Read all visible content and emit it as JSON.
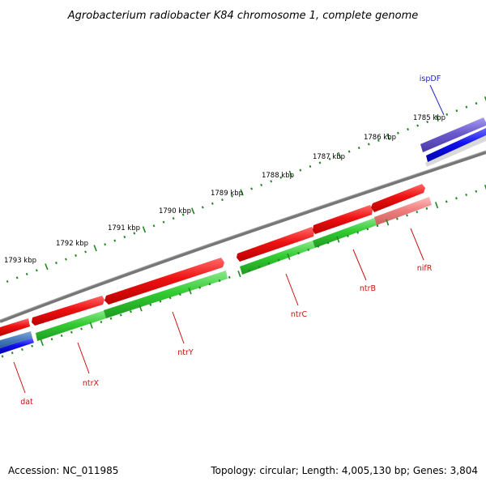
{
  "title": "Agrobacterium radiobacter K84 chromosome 1, complete genome",
  "footer": {
    "accession": "Accession: NC_011985",
    "topology": "Topology: circular; Length: 4,005,130 bp; Genes: 3,804"
  },
  "ruler": {
    "unit": "kbp",
    "ticks": [
      "1785 kbp",
      "1786 kbp",
      "1787 kbp",
      "1788 kbp",
      "1789 kbp",
      "1790 kbp",
      "1791 kbp",
      "1792 kbp",
      "1793 kbp"
    ]
  },
  "genes": [
    {
      "name": "ispDF",
      "strand": "forward",
      "color": "#6a5acd"
    },
    {
      "name": "nifR",
      "strand": "reverse",
      "color": "#f08080"
    },
    {
      "name": "ntrB",
      "strand": "reverse",
      "color": "#33cc33"
    },
    {
      "name": "ntrC",
      "strand": "reverse",
      "color": "#33cc33"
    },
    {
      "name": "ntrY",
      "strand": "reverse",
      "color": "#33cc33"
    },
    {
      "name": "ntrX",
      "strand": "reverse",
      "color": "#33cc33"
    },
    {
      "name": "dat",
      "strand": "reverse",
      "color": "#4169e1"
    }
  ],
  "colors": {
    "cds": "#ee1111",
    "forward_gene": "#2222ee",
    "ticks": "#228822",
    "backbone": "#777777",
    "forward_label": "#2222cc",
    "reverse_label": "#cc1111"
  }
}
